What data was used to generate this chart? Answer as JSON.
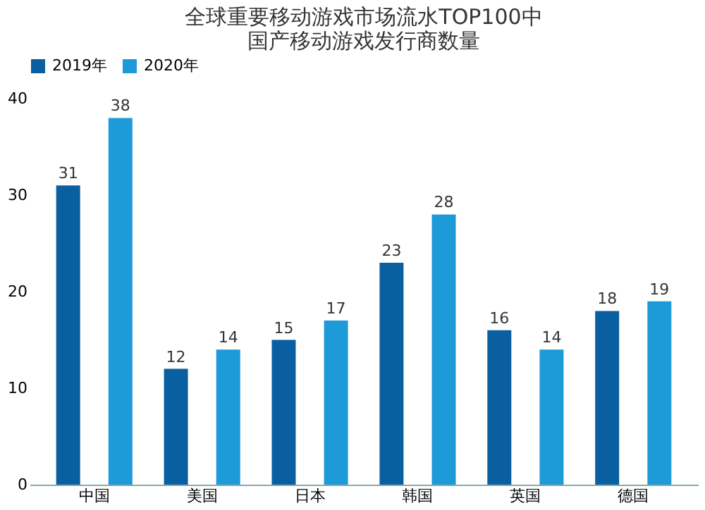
{
  "chart_data": {
    "type": "bar",
    "title": [
      "全球重要移动游戏市场流水TOP100中",
      "国产移动游戏发行商数量"
    ],
    "categories": [
      "中国",
      "美国",
      "日本",
      "韩国",
      "英国",
      "德国"
    ],
    "series": [
      {
        "name": "2019年",
        "color": "#0a5fa0",
        "values": [
          31,
          12,
          15,
          23,
          16,
          18
        ]
      },
      {
        "name": "2020年",
        "color": "#1d9ad8",
        "values": [
          38,
          14,
          17,
          28,
          14,
          19
        ]
      }
    ],
    "ylim": [
      0,
      40
    ],
    "yticks": [
      0,
      10,
      20,
      30,
      40
    ],
    "grid": false,
    "legend": "top",
    "data_labels": true
  }
}
